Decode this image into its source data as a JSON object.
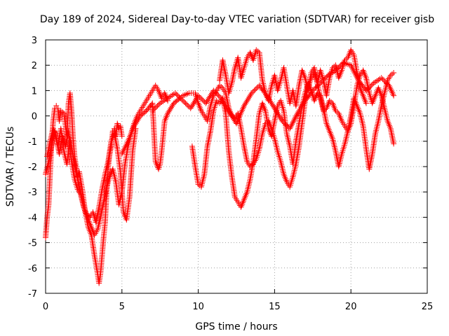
{
  "chart_data": {
    "type": "scatter",
    "marker": "+",
    "title": "Day 189 of 2024, Sidereal Day-to-day VTEC variation (SDTVAR) for receiver gisb",
    "xlabel": "GPS time / hours",
    "ylabel": "SDTVAR / TECUs",
    "xlim": [
      0,
      25
    ],
    "ylim": [
      -7,
      3
    ],
    "xticks": [
      0,
      5,
      10,
      15,
      20,
      25
    ],
    "yticks": [
      -7,
      -6,
      -5,
      -4,
      -3,
      -2,
      -1,
      0,
      1,
      2,
      3
    ],
    "grid": true,
    "series": [
      {
        "name": "SDTVAR",
        "color": "#ff0000",
        "tracks": [
          {
            "x": [
              0.0,
              0.1,
              0.2,
              0.3,
              0.4,
              0.5,
              0.6,
              0.7,
              0.8,
              0.9,
              1.0,
              1.2,
              1.4,
              1.5,
              1.6,
              1.7,
              1.8,
              1.9,
              2.0,
              2.1,
              2.2,
              2.4,
              2.6,
              2.8,
              3.0,
              3.2,
              3.4,
              3.5,
              3.6,
              3.7,
              3.8,
              3.9,
              4.0,
              4.1,
              4.2,
              4.3,
              4.4,
              4.5,
              4.6,
              4.7,
              4.8,
              4.9,
              5.0
            ],
            "y": [
              -4.8,
              -4.0,
              -3.5,
              -2.2,
              -1.0,
              -0.2,
              0.3,
              0.4,
              0.3,
              -0.2,
              0.2,
              0.1,
              -0.8,
              0.5,
              0.9,
              0.2,
              -0.9,
              -1.6,
              -2.0,
              -2.4,
              -2.2,
              -2.9,
              -3.8,
              -4.4,
              -4.7,
              -5.5,
              -6.2,
              -6.6,
              -6.2,
              -5.5,
              -4.8,
              -4.2,
              -3.0,
              -2.0,
              -1.5,
              -1.2,
              -0.6,
              -0.5,
              -0.8,
              -0.3,
              -0.5,
              -0.4,
              -0.8
            ]
          },
          {
            "x": [
              0.0,
              0.2,
              0.4,
              0.6,
              0.8,
              1.0,
              1.2,
              1.4,
              1.6,
              1.8,
              2.0,
              2.2,
              2.4,
              2.6,
              2.8,
              3.0,
              3.2,
              3.4,
              3.6,
              3.8,
              4.0,
              4.2,
              4.4,
              4.6,
              4.8,
              5.0,
              5.2,
              5.4,
              5.6,
              5.8,
              6.0,
              6.2,
              6.4,
              6.6,
              6.8,
              7.0,
              7.2,
              7.4,
              7.6,
              7.8,
              8.0
            ],
            "y": [
              -2.3,
              -1.8,
              -1.1,
              -0.6,
              -1.2,
              -0.5,
              -1.4,
              -1.9,
              -0.9,
              -1.6,
              -2.2,
              -2.8,
              -3.3,
              -3.8,
              -4.1,
              -4.4,
              -4.7,
              -4.5,
              -4.0,
              -3.4,
              -2.8,
              -2.4,
              -2.1,
              -2.6,
              -3.5,
              -3.0,
              -1.9,
              -1.2,
              -0.7,
              -0.3,
              0.0,
              0.2,
              0.4,
              0.6,
              0.8,
              1.0,
              1.2,
              1.0,
              0.7,
              0.9,
              0.6
            ]
          },
          {
            "x": [
              0.1,
              0.3,
              0.5,
              0.7,
              0.9,
              1.1,
              1.3,
              1.5,
              1.7,
              1.9,
              2.1,
              2.3,
              2.5,
              2.7,
              2.9,
              3.1,
              3.3,
              3.5,
              3.7,
              3.9,
              4.1,
              4.3,
              4.5,
              4.7,
              4.9,
              5.1,
              5.3,
              5.5,
              5.7,
              5.9
            ],
            "y": [
              -1.6,
              -1.0,
              -0.5,
              -0.9,
              -1.5,
              -0.8,
              -1.2,
              -0.6,
              -1.8,
              -2.5,
              -2.9,
              -3.1,
              -3.6,
              -3.9,
              -4.0,
              -3.8,
              -4.2,
              -3.6,
              -2.9,
              -2.3,
              -1.8,
              -1.0,
              -0.7,
              -1.3,
              -2.2,
              -3.8,
              -4.1,
              -3.2,
              -1.4,
              -0.5
            ]
          },
          {
            "x": [
              5.0,
              5.4,
              5.8,
              6.2,
              6.6,
              7.0,
              7.2,
              7.4,
              7.5,
              7.6,
              7.8,
              8.0,
              8.4,
              8.8,
              9.0,
              9.4,
              9.8,
              10.0,
              10.2,
              10.4,
              10.6,
              10.8,
              11.0,
              11.2,
              11.4,
              11.6,
              11.8,
              12.0,
              12.2,
              12.4,
              12.6,
              12.8,
              13.0,
              13.2,
              13.4,
              13.6,
              13.8,
              14.0,
              14.2,
              14.4,
              14.6,
              14.8,
              15.0,
              15.2,
              15.4,
              15.6,
              15.8,
              16.0,
              16.2,
              16.4,
              16.6,
              16.8,
              17.0,
              17.2,
              17.4,
              17.6,
              17.8,
              18.0,
              18.2,
              18.4,
              18.6,
              18.8,
              19.0,
              19.2,
              19.4,
              19.6,
              19.8,
              20.0,
              20.2,
              20.4,
              20.6,
              20.8,
              21.0,
              21.2,
              21.4,
              21.6,
              21.8,
              22.0,
              22.2,
              22.4,
              22.6,
              22.8
            ],
            "y": [
              -1.5,
              -1.0,
              -0.4,
              0.0,
              0.2,
              0.5,
              -1.8,
              -2.1,
              -1.9,
              -1.4,
              -0.2,
              0.1,
              0.5,
              0.7,
              0.8,
              0.9,
              0.9,
              0.5,
              0.2,
              0.0,
              -0.2,
              0.4,
              0.8,
              1.0,
              1.2,
              1.1,
              0.9,
              0.3,
              0.0,
              -0.1,
              0.1,
              -0.5,
              -1.2,
              -1.8,
              -2.0,
              -1.9,
              -1.7,
              -1.3,
              -0.7,
              -0.3,
              -0.2,
              -0.5,
              -0.9,
              -1.4,
              -1.8,
              -2.3,
              -2.6,
              -2.8,
              -2.4,
              -1.9,
              -1.2,
              -0.3,
              0.6,
              1.2,
              1.5,
              1.7,
              1.3,
              0.7,
              0.2,
              0.3,
              0.6,
              0.5,
              0.2,
              0.1,
              -0.2,
              -0.4,
              -0.6,
              -0.3,
              0.4,
              1.2,
              1.6,
              1.8,
              1.5,
              0.9,
              0.5,
              0.8,
              1.1,
              0.8,
              0.3,
              -0.2,
              -0.5,
              -1.1
            ]
          },
          {
            "x": [
              9.6,
              9.8,
              10.0,
              10.2,
              10.4,
              10.6,
              10.8,
              11.0,
              11.2,
              11.4,
              11.6,
              11.8,
              12.0,
              12.2,
              12.4,
              12.6,
              12.8,
              13.0,
              13.2,
              13.4,
              13.6,
              13.8,
              14.0,
              14.2,
              14.4,
              14.6,
              14.8,
              15.0,
              15.2,
              15.4,
              15.6,
              15.8,
              16.0,
              16.2,
              16.4,
              16.6,
              16.8,
              17.0,
              17.2,
              17.4,
              17.6,
              17.8,
              18.0,
              18.2,
              18.4,
              18.6,
              18.8,
              19.0,
              19.2,
              19.4,
              19.6,
              19.8,
              20.0,
              20.2,
              20.4,
              20.6,
              20.8,
              21.0,
              21.2,
              21.4,
              21.6,
              21.8,
              22.0,
              22.2,
              22.4,
              22.6,
              22.8
            ],
            "y": [
              -1.2,
              -2.0,
              -2.7,
              -2.8,
              -2.3,
              -1.2,
              -0.6,
              0.2,
              0.6,
              0.5,
              0.7,
              0.1,
              -1.4,
              -2.4,
              -3.2,
              -3.4,
              -3.6,
              -3.3,
              -3.0,
              -2.5,
              -1.8,
              -0.9,
              0.1,
              0.5,
              0.2,
              -0.5,
              -0.8,
              -0.2,
              0.4,
              0.6,
              0.2,
              -0.7,
              -1.2,
              -1.9,
              -1.0,
              -0.3,
              0.4,
              0.9,
              1.3,
              1.0,
              0.6,
              0.9,
              0.8,
              0.3,
              -0.3,
              -0.6,
              -0.9,
              -1.4,
              -2.0,
              -1.5,
              -1.1,
              -0.6,
              0.0,
              0.7,
              0.4,
              0.1,
              -0.4,
              -1.3,
              -2.1,
              -1.5,
              -0.7,
              -0.2,
              0.4,
              0.9,
              1.4,
              1.6,
              1.7
            ]
          },
          {
            "x": [
              7.0,
              7.5,
              8.0,
              8.5,
              9.0,
              9.5,
              10.0,
              10.5,
              11.0,
              11.5,
              12.0,
              12.5,
              13.0,
              13.5,
              14.0,
              14.5,
              15.0,
              15.5,
              16.0,
              16.5,
              17.0,
              17.5,
              18.0,
              18.5,
              19.0,
              19.5,
              20.0,
              20.5,
              21.0,
              21.5,
              22.0,
              22.5,
              22.8
            ],
            "y": [
              0.2,
              0.5,
              0.7,
              0.9,
              0.6,
              0.3,
              0.8,
              0.5,
              1.0,
              0.7,
              0.2,
              -0.3,
              0.4,
              0.9,
              1.2,
              0.8,
              0.3,
              -0.2,
              -0.5,
              0.1,
              0.6,
              1.0,
              1.3,
              1.6,
              1.8,
              2.1,
              2.0,
              1.4,
              1.0,
              1.3,
              1.5,
              1.2,
              0.8
            ]
          },
          {
            "x": [
              11.4,
              11.6,
              11.8,
              12.0,
              12.2,
              12.4,
              12.6,
              12.8,
              13.0,
              13.2,
              13.4,
              13.6,
              13.8,
              14.0,
              14.2,
              14.4,
              14.6,
              14.8,
              15.0,
              15.2,
              15.4,
              15.6,
              15.8,
              16.0,
              16.2,
              16.4,
              16.6,
              16.8,
              17.0,
              17.2,
              17.4,
              17.6,
              17.8,
              18.0,
              18.2,
              18.4,
              18.6,
              18.8,
              19.0,
              19.2,
              19.4,
              19.6,
              19.8,
              20.0,
              20.2,
              20.4,
              20.6,
              20.8,
              21.0
            ],
            "y": [
              1.4,
              2.2,
              1.6,
              0.9,
              1.3,
              1.9,
              2.3,
              1.5,
              1.9,
              2.3,
              2.5,
              2.2,
              2.6,
              2.5,
              1.4,
              0.9,
              0.6,
              1.2,
              1.6,
              1.0,
              1.4,
              1.9,
              1.2,
              0.5,
              1.0,
              0.4,
              1.2,
              1.8,
              1.5,
              1.0,
              1.7,
              1.9,
              1.3,
              1.8,
              1.4,
              0.8,
              1.5,
              1.9,
              2.0,
              1.5,
              1.8,
              2.2,
              2.3,
              2.6,
              2.4,
              1.7,
              1.1,
              0.8,
              0.5
            ]
          }
        ]
      }
    ]
  }
}
